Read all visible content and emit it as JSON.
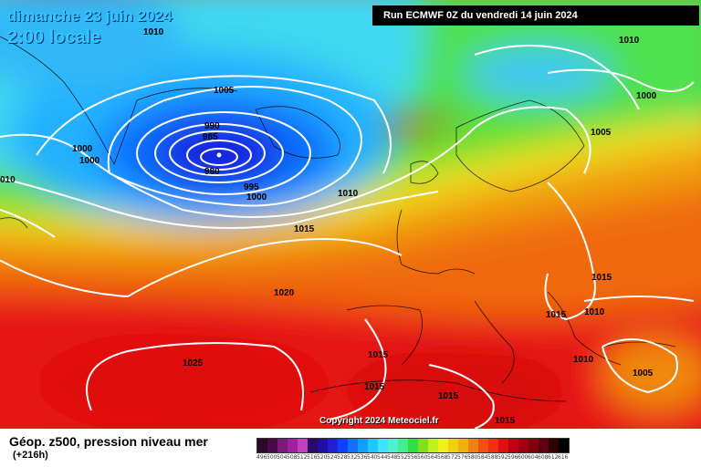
{
  "header": {
    "date": "dimanche 23 juin 2024",
    "time": "2:00 locale",
    "run": "Run ECMWF 0Z du vendredi 14 juin 2024"
  },
  "copyright": "Copyright 2024 Meteociel.fr",
  "footer": {
    "caption": "Géop. z500, pression niveau mer",
    "lead": "(+216h)"
  },
  "isobar_labels": [
    "1010",
    "1010",
    "1005",
    "1000",
    "990",
    "985",
    "980",
    "995",
    "1000",
    "1000",
    "1000",
    "010",
    "1005",
    "1010",
    "1015",
    "1015",
    "1020",
    "1015",
    "1010",
    "1025",
    "1015",
    "1015",
    "1010",
    "1005",
    "1015",
    "1015"
  ],
  "scale": {
    "labels": [
      "496",
      "500",
      "504",
      "508",
      "512",
      "516",
      "520",
      "524",
      "528",
      "532",
      "536",
      "540",
      "544",
      "548",
      "552",
      "556",
      "560",
      "564",
      "568",
      "572",
      "576",
      "580",
      "584",
      "588",
      "592",
      "596",
      "600",
      "604",
      "608",
      "612",
      "616"
    ],
    "colors": [
      "#2a0a2a",
      "#4a0a4a",
      "#7a1a7a",
      "#a020a0",
      "#c040c0",
      "#2a0a6a",
      "#2010a0",
      "#2020d0",
      "#1040ff",
      "#1070ff",
      "#10a0ff",
      "#20c8ff",
      "#40e0ff",
      "#50f0d0",
      "#40f090",
      "#30e040",
      "#80e020",
      "#c0f020",
      "#f0f020",
      "#f0d010",
      "#f0b010",
      "#f08010",
      "#f05010",
      "#f03010",
      "#e01010",
      "#c00010",
      "#a00010",
      "#800010",
      "#600010",
      "#300000",
      "#000000"
    ]
  }
}
